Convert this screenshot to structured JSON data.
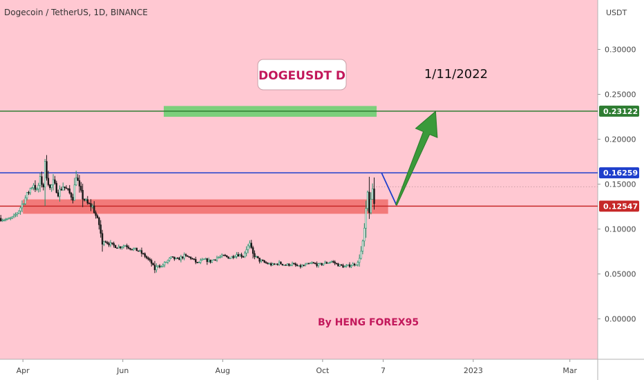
{
  "chart_data": {
    "type": "candlestick",
    "title": "Dogecoin / TetherUS, 1D, BINANCE",
    "annotation_title": "DOGEUSDT D",
    "date_label": "1/11/2022",
    "author_label": "By HENG FOREX95",
    "y_axis_unit": "USDT",
    "y_ticks": [
      {
        "value": 0.3,
        "label": "0.30000"
      },
      {
        "value": 0.25,
        "label": "0.25000"
      },
      {
        "value": 0.2,
        "label": "0.20000"
      },
      {
        "value": 0.15,
        "label": "0.15000"
      },
      {
        "value": 0.1,
        "label": "0.10000"
      },
      {
        "value": 0.05,
        "label": "0.05000"
      },
      {
        "value": 0.0,
        "label": "0.00000"
      }
    ],
    "x_ticks": [
      {
        "value": 14,
        "label": "Apr"
      },
      {
        "value": 75,
        "label": "Jun"
      },
      {
        "value": 136,
        "label": "Aug"
      },
      {
        "value": 197,
        "label": "Oct"
      },
      {
        "value": 234,
        "label": "7"
      },
      {
        "value": 289,
        "label": "2023"
      },
      {
        "value": 348,
        "label": "Mar"
      }
    ],
    "xlim": [
      0,
      365
    ],
    "ylim": [
      -0.045,
      0.355
    ],
    "levels": [
      {
        "name": "target",
        "value": 0.23122,
        "label": "0.23122",
        "color": "#2e7d32"
      },
      {
        "name": "resistance",
        "value": 0.16259,
        "label": "0.16259",
        "color": "#1e3fcc"
      },
      {
        "name": "support",
        "value": 0.12547,
        "label": "0.12547",
        "color": "#c62828"
      }
    ],
    "zones": [
      {
        "name": "target-zone",
        "x0": 100,
        "x1": 230,
        "y0": 0.225,
        "y1": 0.237,
        "color": "#7ccf7c"
      },
      {
        "name": "support-zone",
        "x0": 14,
        "x1": 237,
        "y0": 0.117,
        "y1": 0.133,
        "color": "#f27a7a"
      }
    ],
    "projection": {
      "path": [
        [
          233,
          0.1626
        ],
        [
          242,
          0.127
        ],
        [
          266,
          0.231
        ]
      ],
      "line_color": "#1e3fcc",
      "arrow_color": "#3a9a3a"
    },
    "series": {
      "up_color": "#22906a",
      "down_color": "#1a1a1a",
      "points": [
        [
          0,
          0.112
        ],
        [
          4,
          0.11
        ],
        [
          8,
          0.113
        ],
        [
          12,
          0.124
        ],
        [
          16,
          0.138
        ],
        [
          18,
          0.145
        ],
        [
          20,
          0.15
        ],
        [
          22,
          0.142
        ],
        [
          24,
          0.155
        ],
        [
          26,
          0.148
        ],
        [
          27,
          0.172
        ],
        [
          28,
          0.16
        ],
        [
          30,
          0.145
        ],
        [
          32,
          0.152
        ],
        [
          35,
          0.14
        ],
        [
          38,
          0.148
        ],
        [
          41,
          0.142
        ],
        [
          44,
          0.135
        ],
        [
          46,
          0.16
        ],
        [
          48,
          0.145
        ],
        [
          50,
          0.135
        ],
        [
          53,
          0.128
        ],
        [
          56,
          0.125
        ],
        [
          58,
          0.115
        ],
        [
          60,
          0.105
        ],
        [
          61,
          0.095
        ],
        [
          62,
          0.082
        ],
        [
          63,
          0.088
        ],
        [
          65,
          0.085
        ],
        [
          68,
          0.082
        ],
        [
          72,
          0.08
        ],
        [
          76,
          0.082
        ],
        [
          80,
          0.078
        ],
        [
          84,
          0.076
        ],
        [
          88,
          0.07
        ],
        [
          92,
          0.062
        ],
        [
          94,
          0.055
        ],
        [
          96,
          0.06
        ],
        [
          98,
          0.058
        ],
        [
          100,
          0.062
        ],
        [
          104,
          0.068
        ],
        [
          108,
          0.066
        ],
        [
          112,
          0.07
        ],
        [
          116,
          0.068
        ],
        [
          120,
          0.062
        ],
        [
          124,
          0.066
        ],
        [
          128,
          0.064
        ],
        [
          132,
          0.068
        ],
        [
          136,
          0.07
        ],
        [
          140,
          0.068
        ],
        [
          144,
          0.072
        ],
        [
          148,
          0.07
        ],
        [
          150,
          0.078
        ],
        [
          152,
          0.083
        ],
        [
          154,
          0.072
        ],
        [
          158,
          0.065
        ],
        [
          162,
          0.062
        ],
        [
          166,
          0.06
        ],
        [
          170,
          0.062
        ],
        [
          174,
          0.06
        ],
        [
          178,
          0.061
        ],
        [
          182,
          0.058
        ],
        [
          186,
          0.06
        ],
        [
          190,
          0.062
        ],
        [
          194,
          0.06
        ],
        [
          198,
          0.062
        ],
        [
          202,
          0.064
        ],
        [
          206,
          0.06
        ],
        [
          210,
          0.058
        ],
        [
          214,
          0.06
        ],
        [
          218,
          0.062
        ],
        [
          220,
          0.075
        ],
        [
          221,
          0.085
        ],
        [
          222,
          0.1
        ],
        [
          223,
          0.12
        ],
        [
          224,
          0.14
        ],
        [
          225,
          0.12
        ],
        [
          226,
          0.13
        ],
        [
          227,
          0.145
        ],
        [
          228,
          0.128
        ]
      ]
    }
  }
}
